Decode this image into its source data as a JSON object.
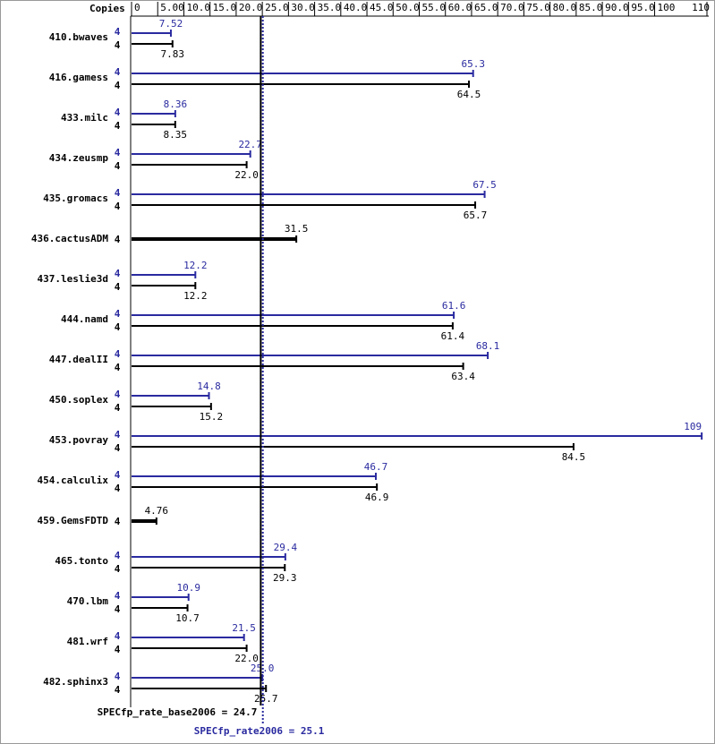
{
  "chart_data": {
    "type": "bar",
    "copies_header": "Copies",
    "categories": [
      "410.bwaves",
      "416.gamess",
      "433.milc",
      "434.zeusmp",
      "435.gromacs",
      "436.cactusADM",
      "437.leslie3d",
      "444.namd",
      "447.dealII",
      "450.soplex",
      "453.povray",
      "454.calculix",
      "459.GemsFDTD",
      "465.tonto",
      "470.lbm",
      "481.wrf",
      "482.sphinx3"
    ],
    "series": [
      {
        "name": "peak",
        "color": "#2a2aa0",
        "copies": [
          4,
          4,
          4,
          4,
          4,
          null,
          4,
          4,
          4,
          4,
          4,
          4,
          null,
          4,
          4,
          4,
          4
        ],
        "values": [
          7.52,
          65.3,
          8.36,
          22.7,
          67.5,
          null,
          12.2,
          61.6,
          68.1,
          14.8,
          109,
          46.7,
          null,
          29.4,
          10.9,
          21.5,
          25.0
        ],
        "value_labels": [
          "7.52",
          "65.3",
          "8.36",
          "22.7",
          "67.5",
          null,
          "12.2",
          "61.6",
          "68.1",
          "14.8",
          "109",
          "46.7",
          null,
          "29.4",
          "10.9",
          "21.5",
          "25.0"
        ]
      },
      {
        "name": "base",
        "color": "#000000",
        "copies": [
          4,
          4,
          4,
          4,
          4,
          4,
          4,
          4,
          4,
          4,
          4,
          4,
          4,
          4,
          4,
          4,
          4
        ],
        "values": [
          7.83,
          64.5,
          8.35,
          22.0,
          65.7,
          31.5,
          12.2,
          61.4,
          63.4,
          15.2,
          84.5,
          46.9,
          4.76,
          29.3,
          10.7,
          22.0,
          25.7
        ],
        "value_labels": [
          "7.83",
          "64.5",
          "8.35",
          "22.0",
          "65.7",
          "31.5",
          "12.2",
          "61.4",
          "63.4",
          "15.2",
          "84.5",
          "46.9",
          "4.76",
          "29.3",
          "10.7",
          "22.0",
          "25.7"
        ]
      }
    ],
    "xlim": [
      0,
      110
    ],
    "xticks": [
      0,
      {
        "value": 5,
        "label": "5.00"
      },
      {
        "value": 10,
        "label": "10.0"
      },
      {
        "value": 15,
        "label": "15.0"
      },
      {
        "value": 20,
        "label": "20.0"
      },
      {
        "value": 25,
        "label": "25.0"
      },
      {
        "value": 30,
        "label": "30.0"
      },
      {
        "value": 35,
        "label": "35.0"
      },
      {
        "value": 40,
        "label": "40.0"
      },
      {
        "value": 45,
        "label": "45.0"
      },
      {
        "value": 50,
        "label": "50.0"
      },
      {
        "value": 55,
        "label": "55.0"
      },
      {
        "value": 60,
        "label": "60.0"
      },
      {
        "value": 65,
        "label": "65.0"
      },
      {
        "value": 70,
        "label": "70.0"
      },
      {
        "value": 75,
        "label": "75.0"
      },
      {
        "value": 80,
        "label": "80.0"
      },
      {
        "value": 85,
        "label": "85.0"
      },
      {
        "value": 90,
        "label": "90.0"
      },
      {
        "value": 95,
        "label": "95.0"
      },
      100,
      110
    ],
    "base_metric": {
      "label": "SPECfp_rate_base2006 = 24.7",
      "value": 24.7
    },
    "peak_metric": {
      "label": "SPECfp_rate2006 = 25.1",
      "value": 25.1
    }
  }
}
